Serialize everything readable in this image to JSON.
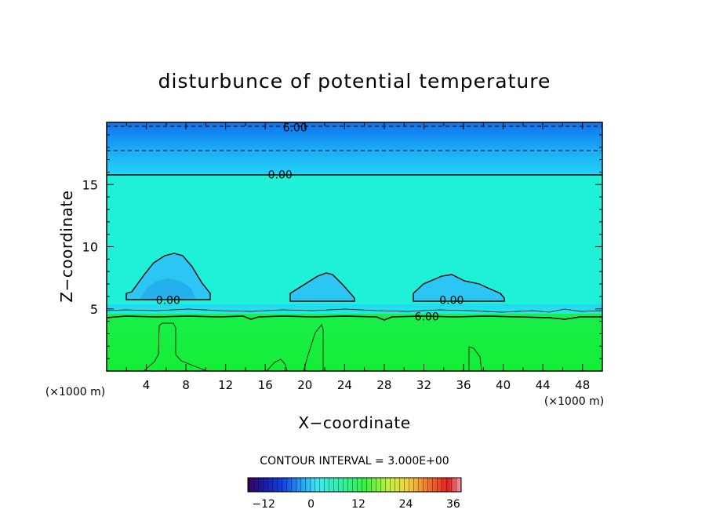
{
  "chart_data": {
    "type": "heatmap",
    "title": "disturbunce of potential temperature",
    "xlabel": "X−coordinate",
    "ylabel": "Z−coordinate",
    "x_unit": "(×1000 m)",
    "y_unit": "(×1000 m)",
    "xlim": [
      0,
      50
    ],
    "ylim": [
      0,
      20
    ],
    "x_ticks": [
      4,
      8,
      12,
      16,
      20,
      24,
      28,
      32,
      36,
      40,
      44,
      48
    ],
    "y_ticks": [
      5,
      10,
      15
    ],
    "contour_interval_text": "CONTOUR INTERVAL = 3.000E+00",
    "contour_labels": [
      {
        "text": "6.00",
        "x": 19,
        "y": 19.6
      },
      {
        "text": "0.00",
        "x": 17.5,
        "y": 15.8
      },
      {
        "text": "0.00",
        "x": 6.2,
        "y": 5.7
      },
      {
        "text": "0.00",
        "x": 34.8,
        "y": 5.7
      },
      {
        "text": "6.00",
        "x": 32.3,
        "y": 4.4
      }
    ],
    "colorbar": {
      "range": [
        -16,
        38
      ],
      "ticks": [
        -12,
        0,
        12,
        24,
        36
      ]
    },
    "grid": false
  }
}
